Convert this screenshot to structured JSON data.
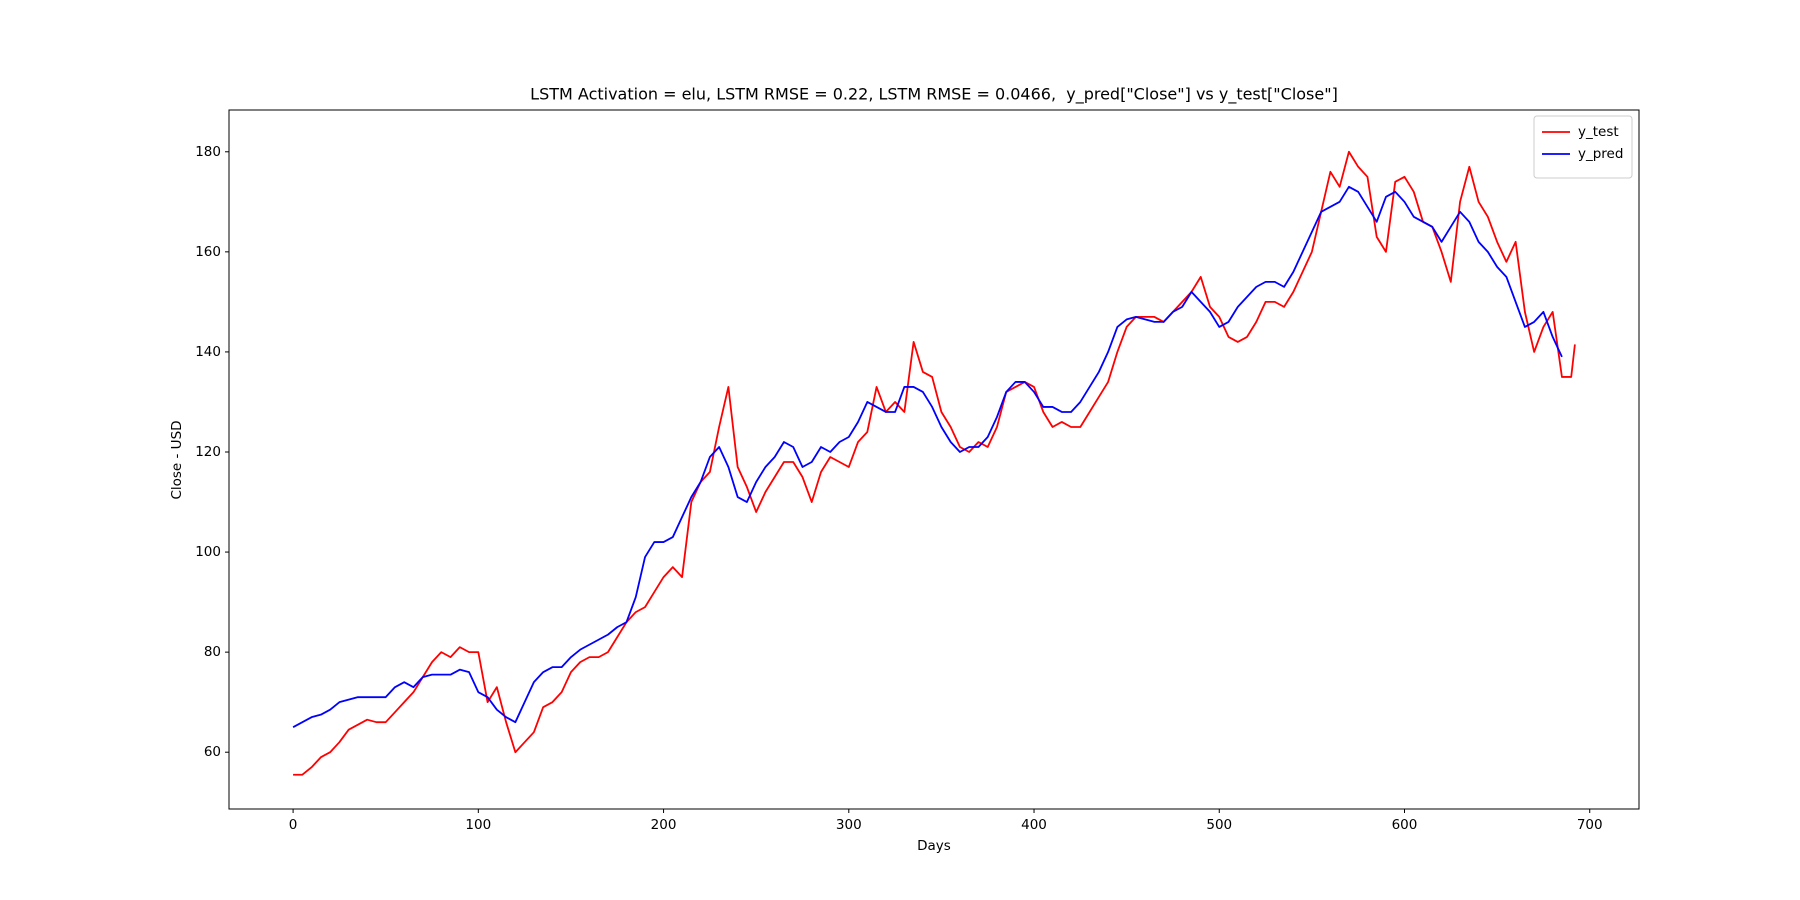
{
  "chart_data": {
    "type": "line",
    "title": "LSTM Activation = elu, LSTM RMSE = 0.22, LSTM RMSE = 0.0466,  y_pred[\"Close\"] vs y_test[\"Close\"]",
    "xlabel": "Days",
    "ylabel": "Close - USD",
    "x": [
      0,
      5,
      10,
      15,
      20,
      25,
      30,
      35,
      40,
      45,
      50,
      55,
      60,
      65,
      70,
      75,
      80,
      85,
      90,
      95,
      100,
      105,
      110,
      115,
      120,
      125,
      130,
      135,
      140,
      145,
      150,
      155,
      160,
      165,
      170,
      175,
      180,
      185,
      190,
      195,
      200,
      205,
      210,
      215,
      220,
      225,
      230,
      235,
      240,
      245,
      250,
      255,
      260,
      265,
      270,
      275,
      280,
      285,
      290,
      295,
      300,
      305,
      310,
      315,
      320,
      325,
      330,
      335,
      340,
      345,
      350,
      355,
      360,
      365,
      370,
      375,
      380,
      385,
      390,
      395,
      400,
      405,
      410,
      415,
      420,
      425,
      430,
      435,
      440,
      445,
      450,
      455,
      460,
      465,
      470,
      475,
      480,
      485,
      490,
      495,
      500,
      505,
      510,
      515,
      520,
      525,
      530,
      535,
      540,
      545,
      550,
      555,
      560,
      565,
      570,
      575,
      580,
      585,
      590,
      595,
      600,
      605,
      610,
      615,
      620,
      625,
      630,
      635,
      640,
      645,
      650,
      655,
      660,
      665,
      670,
      675,
      680,
      685,
      690,
      692
    ],
    "series": [
      {
        "name": "y_test",
        "color": "#ff0000",
        "values": [
          55.5,
          55.5,
          57,
          59,
          60,
          62,
          64.5,
          65.5,
          66.5,
          66,
          66,
          68,
          70,
          72,
          75,
          78,
          80,
          79,
          81,
          80,
          80,
          70,
          73,
          66,
          60,
          62,
          64,
          69,
          70,
          72,
          76,
          78,
          79,
          79,
          80,
          83,
          86,
          88,
          89,
          92,
          95,
          97,
          95,
          110,
          114,
          116,
          125,
          133,
          117,
          113,
          108,
          112,
          115,
          118,
          118,
          115,
          110,
          116,
          119,
          118,
          117,
          122,
          124,
          133,
          128,
          130,
          128,
          142,
          136,
          135,
          128,
          125,
          121,
          120,
          122,
          121,
          125,
          132,
          133,
          134,
          133,
          128,
          125,
          126,
          125,
          125,
          128,
          131,
          134,
          140,
          145,
          147,
          147,
          147,
          146,
          148,
          150,
          152,
          155,
          149,
          147,
          143,
          142,
          143,
          146,
          150,
          150,
          149,
          152,
          156,
          160,
          168,
          176,
          173,
          180,
          177,
          175,
          163,
          160,
          174,
          175,
          172,
          166,
          165,
          160,
          154,
          170,
          177,
          170,
          167,
          162,
          158,
          162,
          148,
          140,
          145,
          148,
          135,
          135,
          141.5
        ]
      },
      {
        "name": "y_pred",
        "color": "#0000ff",
        "values": [
          65,
          66,
          67,
          67.5,
          68.5,
          70,
          70.5,
          71,
          71,
          71,
          71,
          73,
          74,
          73,
          75,
          75.5,
          75.5,
          75.5,
          76.5,
          76,
          72,
          71,
          68.5,
          67,
          66,
          70,
          74,
          76,
          77,
          77,
          79,
          80.5,
          81.5,
          82.5,
          83.5,
          85,
          86,
          91,
          99,
          102,
          102,
          103,
          107,
          111,
          114,
          119,
          121,
          117,
          111,
          110,
          114,
          117,
          119,
          122,
          121,
          117,
          118,
          121,
          120,
          122,
          123,
          126,
          130,
          129,
          128,
          128,
          133,
          133,
          132,
          129,
          125,
          122,
          120,
          121,
          121,
          123,
          127,
          132,
          134,
          134,
          132,
          129,
          129,
          128,
          128,
          130,
          133,
          136,
          140,
          145,
          146.5,
          147,
          146.5,
          146,
          146,
          148,
          149,
          152,
          150,
          148,
          145,
          146,
          149,
          151,
          153,
          154,
          154,
          153,
          156,
          160,
          164,
          168,
          169,
          170,
          173,
          172,
          169,
          166,
          171,
          172,
          170,
          167,
          166,
          165,
          162,
          165,
          168,
          166,
          162,
          160,
          157,
          155,
          150,
          145,
          146,
          148,
          143,
          139,
          null,
          null
        ]
      }
    ],
    "xlim": [
      -34.6,
      726.6
    ],
    "xticks": [
      0,
      100,
      200,
      300,
      400,
      500,
      600,
      700
    ],
    "ylim": [
      48.65,
      188.35
    ],
    "yticks": [
      60,
      80,
      100,
      120,
      140,
      160,
      180
    ],
    "legend": "upper right",
    "grid": false
  }
}
